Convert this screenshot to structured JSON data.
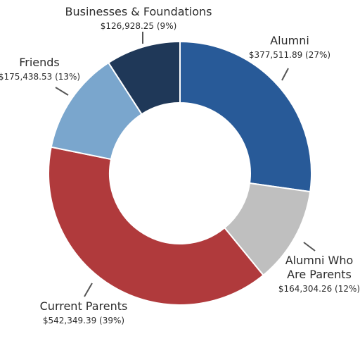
{
  "chart_data": {
    "type": "pie",
    "variant": "donut",
    "title": "",
    "slices": [
      {
        "label_lines": [
          "Alumni"
        ],
        "value": 377511.89,
        "value_text": "$377,511.89 (27%)",
        "percent": 27,
        "color": "#285a98"
      },
      {
        "label_lines": [
          "Alumni Who",
          "Are Parents"
        ],
        "value": 164304.26,
        "value_text": "$164,304.26 (12%)",
        "percent": 12,
        "color": "#bfbfbf"
      },
      {
        "label_lines": [
          "Current Parents"
        ],
        "value": 542349.39,
        "value_text": "$542,349.39 (39%)",
        "percent": 39,
        "color": "#b03a3c"
      },
      {
        "label_lines": [
          "Friends"
        ],
        "value": 175438.53,
        "value_text": "$175,438.53 (13%)",
        "percent": 13,
        "color": "#7aa6cd"
      },
      {
        "label_lines": [
          "Businesses & Foundations"
        ],
        "value": 126928.25,
        "value_text": "$126,928.25 (9%)",
        "percent": 9,
        "color": "#1f3858"
      }
    ]
  }
}
